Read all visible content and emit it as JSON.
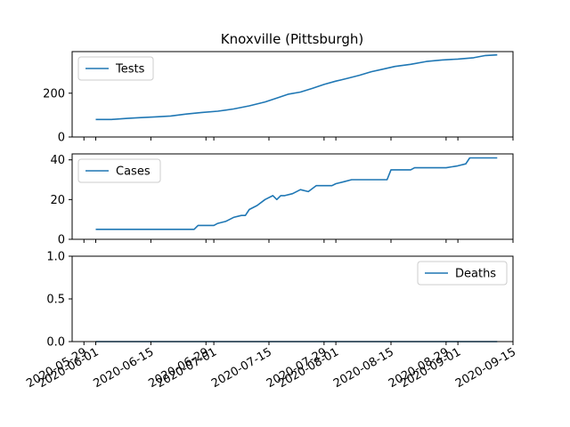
{
  "chart_data": {
    "type": "line",
    "title": "Knoxville (Pittsburgh)",
    "xaxis": {
      "type": "date",
      "range": [
        "2020-05-26",
        "2020-09-15"
      ],
      "ticks": [
        "2020-05-29",
        "2020-06-01",
        "2020-06-15",
        "2020-06-29",
        "2020-07-01",
        "2020-07-15",
        "2020-07-29",
        "2020-08-01",
        "2020-08-15",
        "2020-08-29",
        "2020-09-01",
        "2020-09-15"
      ]
    },
    "panels": [
      {
        "name": "tests",
        "legend": "Tests",
        "legend_loc": "upper left",
        "ylim": [
          0,
          390
        ],
        "yticks": [
          "0",
          "200"
        ],
        "ytick_values": [
          0,
          200
        ],
        "points": [
          [
            "2020-06-01",
            80
          ],
          [
            "2020-06-05",
            80
          ],
          [
            "2020-06-09",
            85
          ],
          [
            "2020-06-12",
            88
          ],
          [
            "2020-06-16",
            92
          ],
          [
            "2020-06-20",
            96
          ],
          [
            "2020-06-24",
            105
          ],
          [
            "2020-06-28",
            112
          ],
          [
            "2020-07-02",
            118
          ],
          [
            "2020-07-06",
            128
          ],
          [
            "2020-07-10",
            142
          ],
          [
            "2020-07-14",
            160
          ],
          [
            "2020-07-17",
            178
          ],
          [
            "2020-07-20",
            196
          ],
          [
            "2020-07-23",
            205
          ],
          [
            "2020-07-26",
            222
          ],
          [
            "2020-07-29",
            240
          ],
          [
            "2020-08-01",
            255
          ],
          [
            "2020-08-04",
            268
          ],
          [
            "2020-08-07",
            282
          ],
          [
            "2020-08-10",
            298
          ],
          [
            "2020-08-13",
            310
          ],
          [
            "2020-08-16",
            322
          ],
          [
            "2020-08-20",
            332
          ],
          [
            "2020-08-24",
            345
          ],
          [
            "2020-08-28",
            352
          ],
          [
            "2020-09-01",
            356
          ],
          [
            "2020-09-05",
            362
          ],
          [
            "2020-09-08",
            372
          ],
          [
            "2020-09-11",
            375
          ]
        ]
      },
      {
        "name": "cases",
        "legend": "Cases",
        "legend_loc": "upper left",
        "ylim": [
          0,
          43
        ],
        "yticks": [
          "0",
          "20",
          "40"
        ],
        "ytick_values": [
          0,
          20,
          40
        ],
        "points": [
          [
            "2020-06-01",
            5
          ],
          [
            "2020-06-26",
            5
          ],
          [
            "2020-06-27",
            7
          ],
          [
            "2020-07-01",
            7
          ],
          [
            "2020-07-02",
            8
          ],
          [
            "2020-07-04",
            9
          ],
          [
            "2020-07-06",
            11
          ],
          [
            "2020-07-08",
            12
          ],
          [
            "2020-07-09",
            12
          ],
          [
            "2020-07-10",
            15
          ],
          [
            "2020-07-12",
            17
          ],
          [
            "2020-07-14",
            20
          ],
          [
            "2020-07-16",
            22
          ],
          [
            "2020-07-17",
            20
          ],
          [
            "2020-07-18",
            22
          ],
          [
            "2020-07-19",
            22
          ],
          [
            "2020-07-21",
            23
          ],
          [
            "2020-07-23",
            25
          ],
          [
            "2020-07-25",
            24
          ],
          [
            "2020-07-27",
            27
          ],
          [
            "2020-07-31",
            27
          ],
          [
            "2020-08-01",
            28
          ],
          [
            "2020-08-03",
            29
          ],
          [
            "2020-08-05",
            30
          ],
          [
            "2020-08-13",
            30
          ],
          [
            "2020-08-14",
            30
          ],
          [
            "2020-08-15",
            35
          ],
          [
            "2020-08-20",
            35
          ],
          [
            "2020-08-21",
            36
          ],
          [
            "2020-08-29",
            36
          ],
          [
            "2020-09-01",
            37
          ],
          [
            "2020-09-03",
            38
          ],
          [
            "2020-09-04",
            41
          ],
          [
            "2020-09-11",
            41
          ]
        ]
      },
      {
        "name": "deaths",
        "legend": "Deaths",
        "legend_loc": "upper right",
        "ylim": [
          0,
          1
        ],
        "yticks": [
          "0.0",
          "0.5",
          "1.0"
        ],
        "ytick_values": [
          0,
          0.5,
          1
        ],
        "points": [
          [
            "2020-06-01",
            0
          ],
          [
            "2020-09-11",
            0
          ]
        ]
      }
    ],
    "grid": false,
    "series_color": "#1f77b4"
  }
}
